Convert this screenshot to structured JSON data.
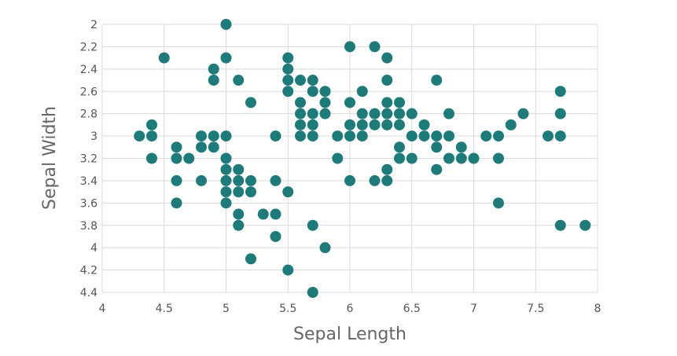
{
  "chart_data": {
    "type": "scatter",
    "title": "",
    "xlabel": "Sepal Length",
    "ylabel": "Sepal Width",
    "xlim": [
      4,
      8
    ],
    "ylim": [
      2,
      4.4
    ],
    "y_inverted": true,
    "grid": true,
    "x_ticks": [
      "4",
      "4.5",
      "5",
      "5.5",
      "6",
      "6.5",
      "7",
      "7.5",
      "8"
    ],
    "y_ticks": [
      "2",
      "2.2",
      "2.4",
      "2.6",
      "2.8",
      "3",
      "3.2",
      "3.4",
      "3.6",
      "3.8",
      "4",
      "4.2",
      "4.4"
    ],
    "point_color": "#1f7a7a",
    "points": [
      [
        4.3,
        3.0
      ],
      [
        4.4,
        2.9
      ],
      [
        4.4,
        3.0
      ],
      [
        4.4,
        3.2
      ],
      [
        4.5,
        2.3
      ],
      [
        4.6,
        3.1
      ],
      [
        4.6,
        3.2
      ],
      [
        4.6,
        3.4
      ],
      [
        4.6,
        3.6
      ],
      [
        4.7,
        3.2
      ],
      [
        4.8,
        3.0
      ],
      [
        4.8,
        3.1
      ],
      [
        4.8,
        3.4
      ],
      [
        4.9,
        2.4
      ],
      [
        4.9,
        2.5
      ],
      [
        4.9,
        3.0
      ],
      [
        4.9,
        3.1
      ],
      [
        5.0,
        2.0
      ],
      [
        5.0,
        2.3
      ],
      [
        5.0,
        3.0
      ],
      [
        5.0,
        3.2
      ],
      [
        5.0,
        3.3
      ],
      [
        5.0,
        3.4
      ],
      [
        5.0,
        3.5
      ],
      [
        5.0,
        3.6
      ],
      [
        5.1,
        2.5
      ],
      [
        5.1,
        3.3
      ],
      [
        5.1,
        3.4
      ],
      [
        5.1,
        3.5
      ],
      [
        5.1,
        3.7
      ],
      [
        5.1,
        3.8
      ],
      [
        5.2,
        2.7
      ],
      [
        5.2,
        3.4
      ],
      [
        5.2,
        3.5
      ],
      [
        5.2,
        4.1
      ],
      [
        5.3,
        3.7
      ],
      [
        5.4,
        3.0
      ],
      [
        5.4,
        3.4
      ],
      [
        5.4,
        3.7
      ],
      [
        5.4,
        3.9
      ],
      [
        5.5,
        2.3
      ],
      [
        5.5,
        2.4
      ],
      [
        5.5,
        2.5
      ],
      [
        5.5,
        2.6
      ],
      [
        5.5,
        3.5
      ],
      [
        5.5,
        4.2
      ],
      [
        5.6,
        2.5
      ],
      [
        5.6,
        2.7
      ],
      [
        5.6,
        2.8
      ],
      [
        5.6,
        2.9
      ],
      [
        5.6,
        3.0
      ],
      [
        5.7,
        2.5
      ],
      [
        5.7,
        2.6
      ],
      [
        5.7,
        2.8
      ],
      [
        5.7,
        2.9
      ],
      [
        5.7,
        3.0
      ],
      [
        5.7,
        3.8
      ],
      [
        5.7,
        4.4
      ],
      [
        5.8,
        2.6
      ],
      [
        5.8,
        2.7
      ],
      [
        5.8,
        2.8
      ],
      [
        5.8,
        4.0
      ],
      [
        5.9,
        3.0
      ],
      [
        5.9,
        3.2
      ],
      [
        6.0,
        2.2
      ],
      [
        6.0,
        2.7
      ],
      [
        6.0,
        2.9
      ],
      [
        6.0,
        3.0
      ],
      [
        6.0,
        3.4
      ],
      [
        6.1,
        2.6
      ],
      [
        6.1,
        2.8
      ],
      [
        6.1,
        2.9
      ],
      [
        6.1,
        3.0
      ],
      [
        6.2,
        2.2
      ],
      [
        6.2,
        2.8
      ],
      [
        6.2,
        2.9
      ],
      [
        6.2,
        3.4
      ],
      [
        6.3,
        2.3
      ],
      [
        6.3,
        2.5
      ],
      [
        6.3,
        2.7
      ],
      [
        6.3,
        2.8
      ],
      [
        6.3,
        2.9
      ],
      [
        6.3,
        3.3
      ],
      [
        6.3,
        3.4
      ],
      [
        6.4,
        2.7
      ],
      [
        6.4,
        2.8
      ],
      [
        6.4,
        2.9
      ],
      [
        6.4,
        3.1
      ],
      [
        6.4,
        3.2
      ],
      [
        6.5,
        2.8
      ],
      [
        6.5,
        3.0
      ],
      [
        6.5,
        3.2
      ],
      [
        6.6,
        2.9
      ],
      [
        6.6,
        3.0
      ],
      [
        6.7,
        2.5
      ],
      [
        6.7,
        3.0
      ],
      [
        6.7,
        3.1
      ],
      [
        6.7,
        3.3
      ],
      [
        6.8,
        2.8
      ],
      [
        6.8,
        3.0
      ],
      [
        6.8,
        3.2
      ],
      [
        6.9,
        3.1
      ],
      [
        6.9,
        3.2
      ],
      [
        7.0,
        3.2
      ],
      [
        7.1,
        3.0
      ],
      [
        7.2,
        3.0
      ],
      [
        7.2,
        3.2
      ],
      [
        7.2,
        3.6
      ],
      [
        7.3,
        2.9
      ],
      [
        7.4,
        2.8
      ],
      [
        7.6,
        3.0
      ],
      [
        7.7,
        2.6
      ],
      [
        7.7,
        2.8
      ],
      [
        7.7,
        3.0
      ],
      [
        7.7,
        3.8
      ],
      [
        7.9,
        3.8
      ]
    ]
  }
}
